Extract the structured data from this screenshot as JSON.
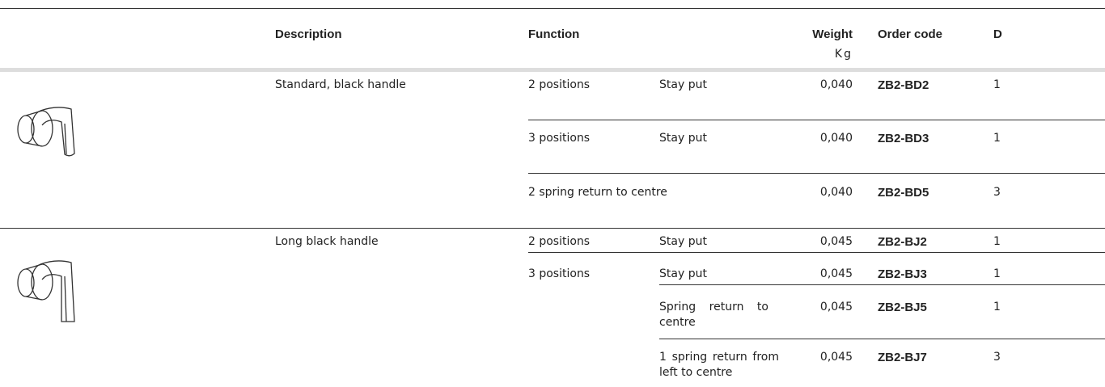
{
  "header": {
    "description": "Description",
    "function": "Function",
    "weight": "Weight",
    "weight_unit": "Kg",
    "order_code": "Order code",
    "d": "D"
  },
  "groups": [
    {
      "description": "Standard, black handle",
      "rows": [
        {
          "function": "2 positions",
          "type": "Stay put",
          "weight": "0,040",
          "order_code": "ZB2-BD2",
          "d": "1"
        },
        {
          "function": "3 positions",
          "type": "Stay put",
          "weight": "0,040",
          "order_code": "ZB2-BD3",
          "d": "1"
        },
        {
          "function": "2 spring return to centre",
          "weight": "0,040",
          "order_code": "ZB2-BD5",
          "d": "3"
        }
      ]
    },
    {
      "description": "Long black handle",
      "rows": [
        {
          "function": "2 positions",
          "type": "Stay put",
          "weight": "0,045",
          "order_code": "ZB2-BJ2",
          "d": "1"
        },
        {
          "function": "3 positions",
          "type": "Stay put",
          "weight": "0,045",
          "order_code": "ZB2-BJ3",
          "d": "1"
        },
        {
          "type": "Spring return to centre",
          "weight": "0,045",
          "order_code": "ZB2-BJ5",
          "d": "1"
        },
        {
          "type": "1 spring return from left to centre",
          "weight": "0,045",
          "order_code": "ZB2-BJ7",
          "d": "3"
        }
      ]
    }
  ]
}
